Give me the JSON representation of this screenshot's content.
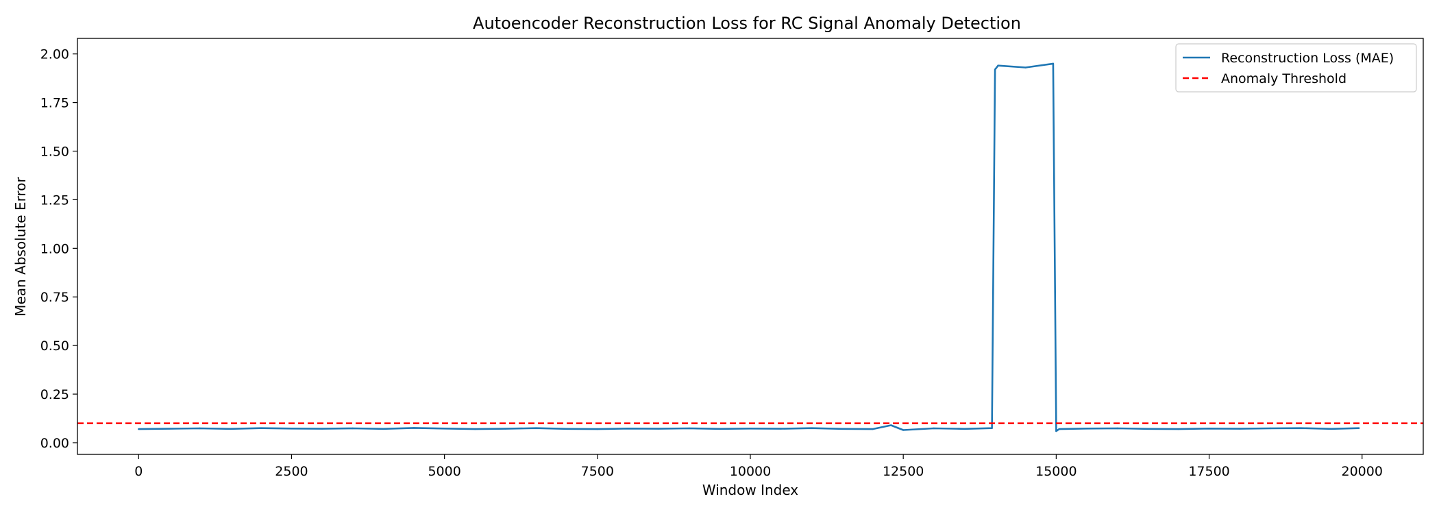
{
  "chart_data": {
    "type": "line",
    "title": "Autoencoder Reconstruction Loss for RC Signal Anomaly Detection",
    "xlabel": "Window Index",
    "ylabel": "Mean Absolute Error",
    "xlim": [
      -1000,
      21000
    ],
    "ylim": [
      -0.06,
      2.08
    ],
    "xticks": [
      0,
      2500,
      5000,
      7500,
      10000,
      12500,
      15000,
      17500,
      20000
    ],
    "xtick_labels": [
      "0",
      "2500",
      "5000",
      "7500",
      "10000",
      "12500",
      "15000",
      "17500",
      "20000"
    ],
    "yticks": [
      0.0,
      0.25,
      0.5,
      0.75,
      1.0,
      1.25,
      1.5,
      1.75,
      2.0
    ],
    "ytick_labels": [
      "0.00",
      "0.25",
      "0.50",
      "0.75",
      "1.00",
      "1.25",
      "1.50",
      "1.75",
      "2.00"
    ],
    "grid": false,
    "legend_position": "top-right",
    "series": [
      {
        "name": "Reconstruction Loss (MAE)",
        "style": "solid",
        "color": "#1f77b4",
        "x": [
          0,
          500,
          1000,
          1500,
          2000,
          2500,
          3000,
          3500,
          4000,
          4500,
          5000,
          5500,
          6000,
          6500,
          7000,
          7500,
          8000,
          8500,
          9000,
          9500,
          10000,
          10500,
          11000,
          11500,
          12000,
          12300,
          12500,
          13000,
          13500,
          13950,
          14000,
          14050,
          14500,
          14950,
          15000,
          15050,
          15500,
          16000,
          16500,
          17000,
          17500,
          18000,
          18500,
          19000,
          19500,
          19950
        ],
        "values": [
          0.07,
          0.072,
          0.074,
          0.071,
          0.075,
          0.073,
          0.072,
          0.074,
          0.071,
          0.076,
          0.073,
          0.07,
          0.072,
          0.075,
          0.071,
          0.07,
          0.073,
          0.072,
          0.074,
          0.071,
          0.073,
          0.072,
          0.075,
          0.071,
          0.07,
          0.09,
          0.065,
          0.074,
          0.071,
          0.075,
          1.92,
          1.94,
          1.93,
          1.95,
          0.06,
          0.07,
          0.073,
          0.074,
          0.071,
          0.07,
          0.073,
          0.072,
          0.074,
          0.075,
          0.071,
          0.075
        ]
      },
      {
        "name": "Anomaly Threshold",
        "style": "dashed",
        "color": "#ff0000",
        "value": 0.1
      }
    ]
  }
}
